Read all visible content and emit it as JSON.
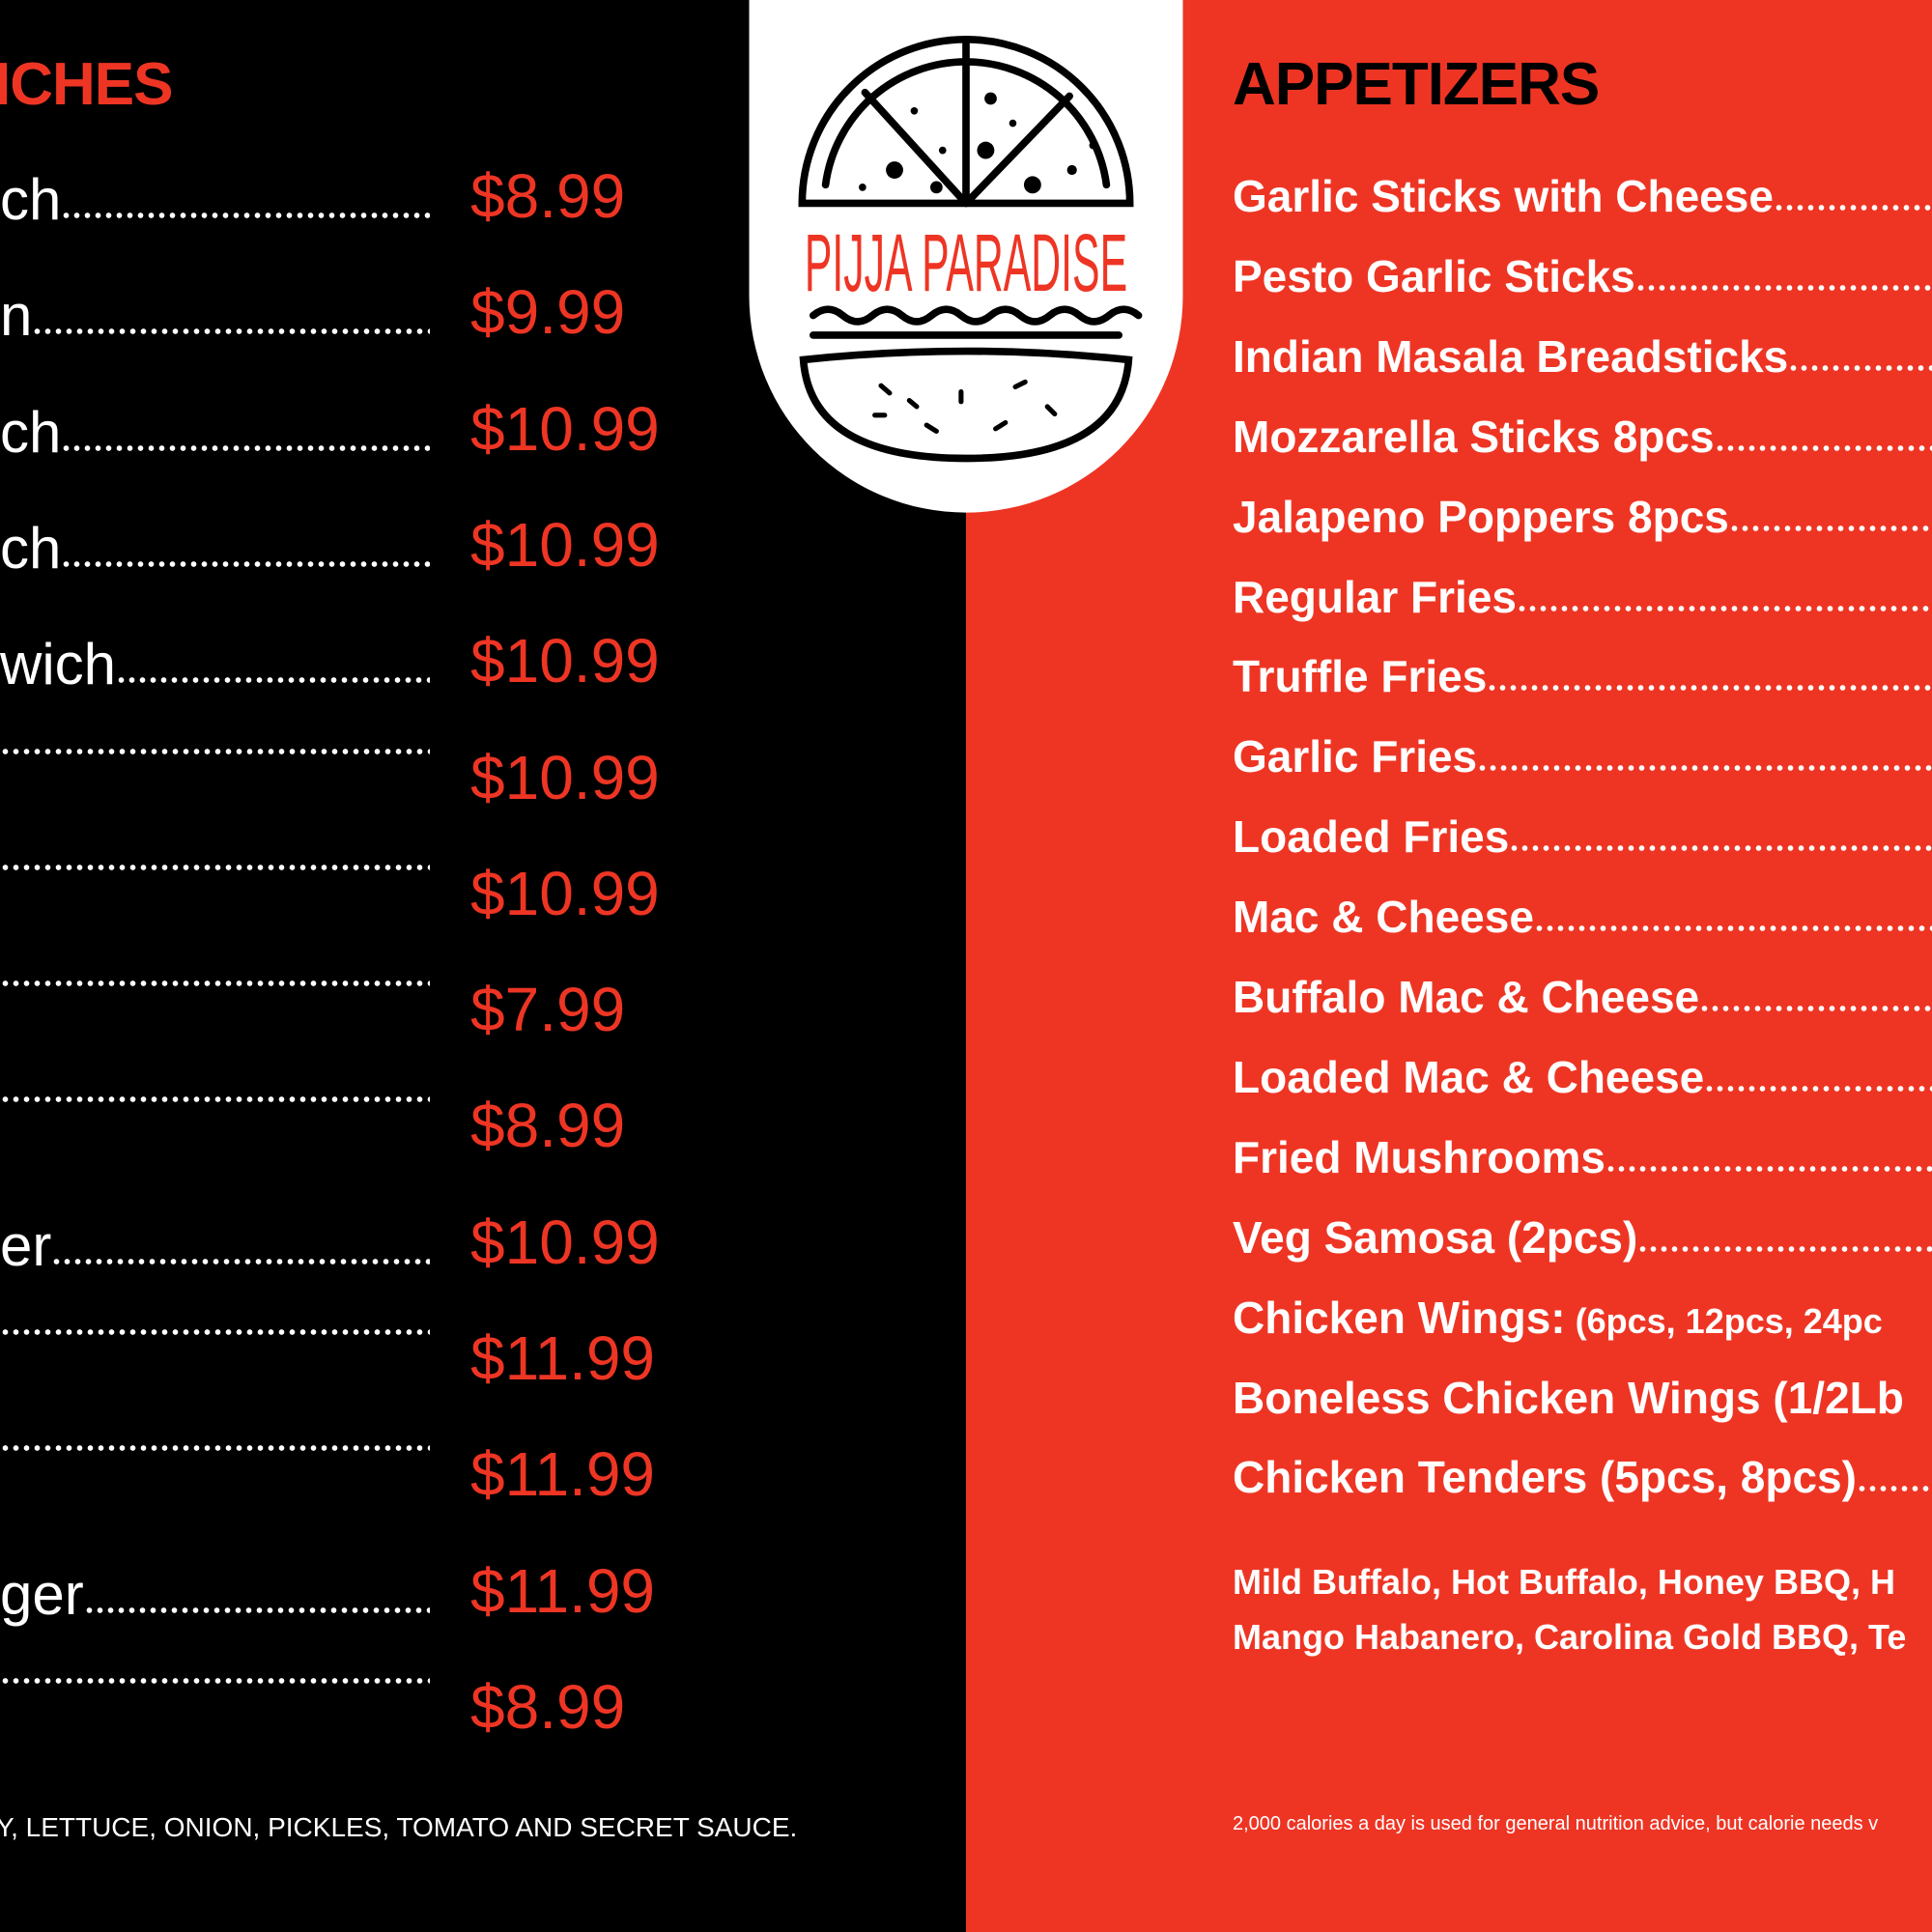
{
  "left_section": {
    "heading": "ICHES",
    "items": [
      {
        "name": "ch",
        "price": "$8.99"
      },
      {
        "name": "n",
        "price": "$9.99"
      },
      {
        "name": "ch",
        "price": "$10.99"
      },
      {
        "name": "ch",
        "price": "$10.99"
      },
      {
        "name": "wich",
        "price": "$10.99"
      },
      {
        "price": "$10.99"
      },
      {
        "price": "$10.99"
      },
      {
        "price": "$7.99"
      },
      {
        "price": "$8.99"
      },
      {
        "name": "er",
        "price": "$10.99"
      },
      {
        "price": "$11.99"
      },
      {
        "price": "$11.99"
      },
      {
        "name": "ger",
        "price": "$11.99"
      },
      {
        "price": "$8.99"
      }
    ],
    "footnote": "Y, LETTUCE, ONION, PICKLES, TOMATO AND SECRET SAUCE."
  },
  "logo": {
    "brand": "PIJJA PARADISE"
  },
  "right_section": {
    "heading": "APPETIZERS",
    "items": [
      {
        "name": "Garlic Sticks with Cheese"
      },
      {
        "name": "Pesto Garlic Sticks"
      },
      {
        "name": "Indian Masala Breadsticks"
      },
      {
        "name": "Mozzarella Sticks 8pcs"
      },
      {
        "name": "Jalapeno Poppers 8pcs"
      },
      {
        "name": "Regular Fries"
      },
      {
        "name": "Truffle Fries"
      },
      {
        "name": "Garlic Fries"
      },
      {
        "name": "Loaded Fries"
      },
      {
        "name": "Mac & Cheese"
      },
      {
        "name": "Buffalo Mac & Cheese"
      },
      {
        "name": "Loaded Mac & Cheese"
      },
      {
        "name": "Fried Mushrooms"
      },
      {
        "name": "Veg Samosa (2pcs)"
      },
      {
        "name": "Chicken Wings:",
        "detail": "(6pcs, 12pcs, 24pc"
      },
      {
        "name": "Boneless Chicken Wings (1/2Lb"
      },
      {
        "name": "Chicken Tenders (5pcs, 8pcs)"
      }
    ],
    "sauces": [
      "Mild Buffalo, Hot Buffalo, Honey BBQ, H",
      "Mango Habanero, Carolina Gold BBQ, Te"
    ],
    "footnote": "2,000 calories a day is used for general nutrition advice, but calorie needs v"
  }
}
